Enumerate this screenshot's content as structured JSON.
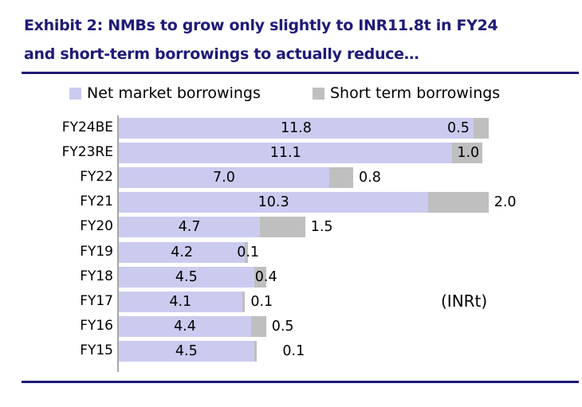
{
  "title": {
    "line1": "Exhibit 2: NMBs to grow only slightly to INR11.8t in FY24",
    "line2": "and short-term borrowings to actually reduce…"
  },
  "legend": [
    {
      "label": "Net market borrowings",
      "color": "#CBCBF0"
    },
    {
      "label": "Short term borrowings",
      "color": "#BFBFBF"
    }
  ],
  "annotation": "(INRt)",
  "colors": {
    "title_navy": "#1E1A78",
    "rule_navy": "#1E1A78",
    "net_market_borrowings": "#CBCBF0",
    "short_term_borrowings": "#BFBFBF",
    "axis_line": "#A6A6A6",
    "label_text": "#000000"
  },
  "chart_data": {
    "type": "bar",
    "orientation": "horizontal",
    "stacked": true,
    "value_labels": true,
    "grid": false,
    "legend_position": "top",
    "unit": "INRt",
    "categories": [
      "FY24BE",
      "FY23RE",
      "FY22",
      "FY21",
      "FY20",
      "FY19",
      "FY18",
      "FY17",
      "FY16",
      "FY15"
    ],
    "series": [
      {
        "name": "Net market borrowings",
        "color": "#CBCBF0",
        "values": [
          11.8,
          11.1,
          7.0,
          10.3,
          4.7,
          4.2,
          4.5,
          4.1,
          4.4,
          4.5
        ]
      },
      {
        "name": "Short term borrowings",
        "color": "#BFBFBF",
        "values": [
          0.5,
          1.0,
          0.8,
          2.0,
          1.5,
          0.1,
          0.4,
          0.1,
          0.5,
          0.1
        ]
      }
    ],
    "xlim": [
      0,
      14.6
    ],
    "stb_label_modes": [
      "in-lavender",
      "at-end",
      "outside",
      "outside",
      "outside",
      "straddle",
      "straddle",
      "outside",
      "outside",
      "outside-far"
    ]
  }
}
